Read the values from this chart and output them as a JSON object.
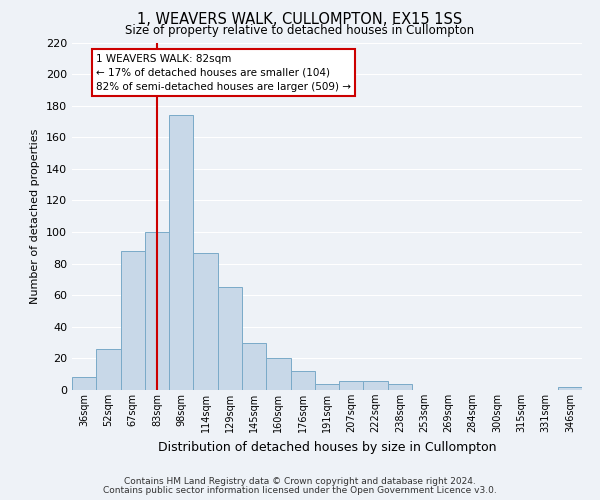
{
  "title": "1, WEAVERS WALK, CULLOMPTON, EX15 1SS",
  "subtitle": "Size of property relative to detached houses in Cullompton",
  "xlabel": "Distribution of detached houses by size in Cullompton",
  "ylabel": "Number of detached properties",
  "bar_color": "#c8d8e8",
  "bar_edge_color": "#7aaac8",
  "background_color": "#eef2f7",
  "grid_color": "#ffffff",
  "categories": [
    "36sqm",
    "52sqm",
    "67sqm",
    "83sqm",
    "98sqm",
    "114sqm",
    "129sqm",
    "145sqm",
    "160sqm",
    "176sqm",
    "191sqm",
    "207sqm",
    "222sqm",
    "238sqm",
    "253sqm",
    "269sqm",
    "284sqm",
    "300sqm",
    "315sqm",
    "331sqm",
    "346sqm"
  ],
  "values": [
    8,
    26,
    88,
    100,
    174,
    87,
    65,
    30,
    20,
    12,
    4,
    6,
    6,
    4,
    0,
    0,
    0,
    0,
    0,
    0,
    2
  ],
  "ylim": [
    0,
    220
  ],
  "yticks": [
    0,
    20,
    40,
    60,
    80,
    100,
    120,
    140,
    160,
    180,
    200,
    220
  ],
  "vline_x": 3,
  "vline_color": "#cc0000",
  "annotation_title": "1 WEAVERS WALK: 82sqm",
  "annotation_line1": "← 17% of detached houses are smaller (104)",
  "annotation_line2": "82% of semi-detached houses are larger (509) →",
  "annotation_box_color": "#ffffff",
  "annotation_box_edge": "#cc0000",
  "footer1": "Contains HM Land Registry data © Crown copyright and database right 2024.",
  "footer2": "Contains public sector information licensed under the Open Government Licence v3.0."
}
